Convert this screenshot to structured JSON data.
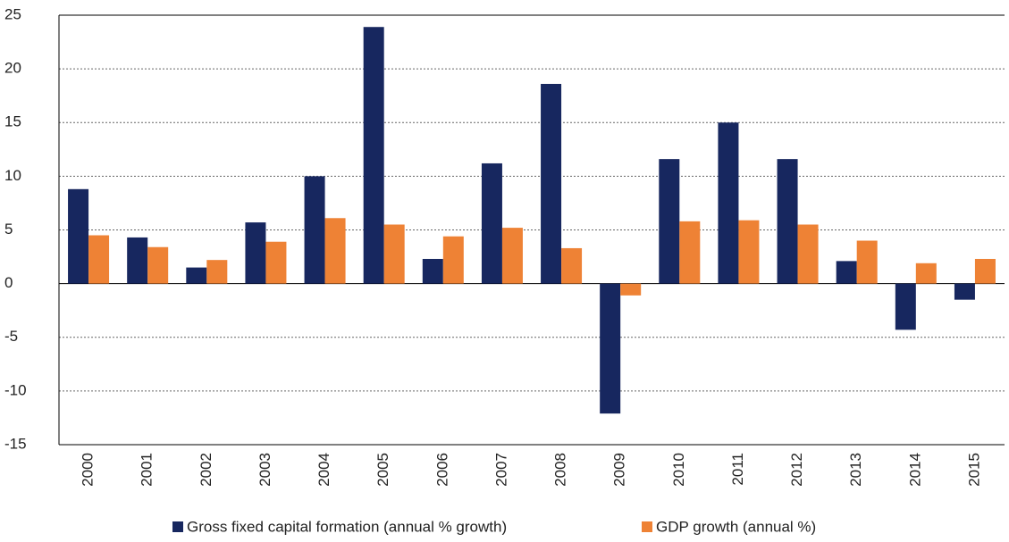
{
  "chart_data": {
    "type": "bar",
    "categories": [
      "2000",
      "2001",
      "2002",
      "2003",
      "2004",
      "2005",
      "2006",
      "2007",
      "2008",
      "2009",
      "2010",
      "2011",
      "2012",
      "2013",
      "2014",
      "2015"
    ],
    "series": [
      {
        "name": "Gross fixed capital formation (annual % growth)",
        "color": "#17275f",
        "values": [
          8.8,
          4.3,
          1.5,
          5.7,
          10.0,
          23.9,
          2.3,
          11.2,
          18.6,
          -12.1,
          11.6,
          15.0,
          11.6,
          2.1,
          -4.3,
          -1.5
        ]
      },
      {
        "name": "GDP growth (annual %)",
        "color": "#ee8235",
        "values": [
          4.5,
          3.4,
          2.2,
          3.9,
          6.1,
          5.5,
          4.4,
          5.2,
          3.3,
          -1.1,
          5.8,
          5.9,
          5.5,
          4.0,
          1.9,
          2.3
        ]
      }
    ],
    "ylim": [
      -15,
      25
    ],
    "yticks": [
      -15,
      -10,
      -5,
      0,
      5,
      10,
      15,
      20,
      25
    ],
    "grid": true,
    "legend": "bottom"
  }
}
